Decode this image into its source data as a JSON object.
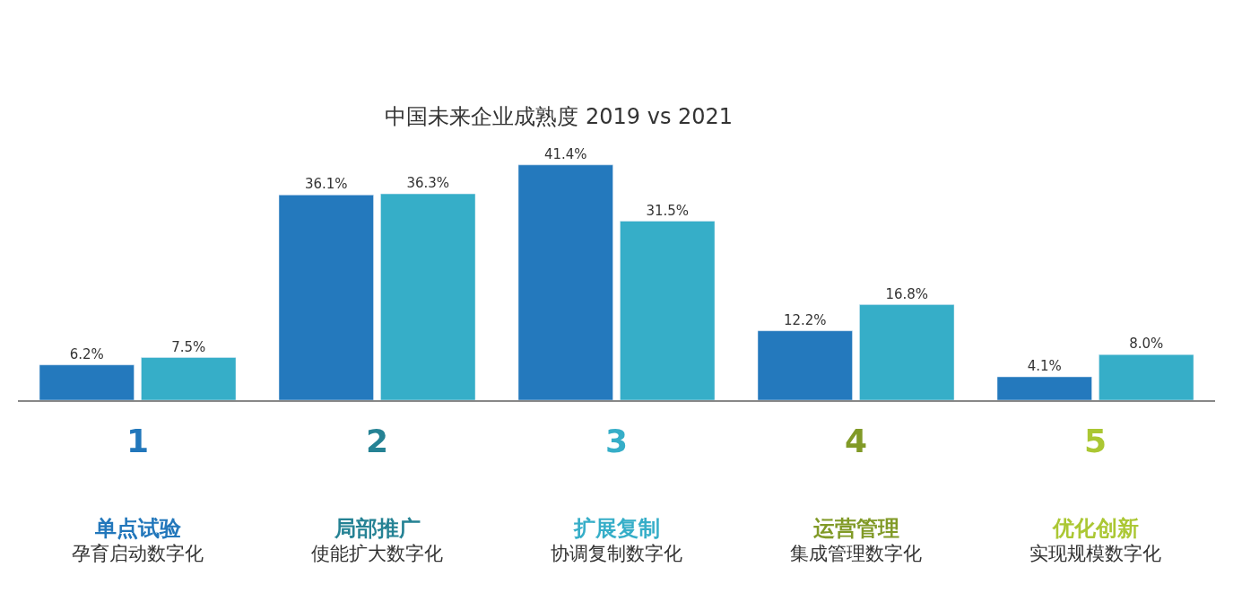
{
  "chart_data": {
    "type": "bar",
    "title": "中国未来企业成熟度 2019 vs 2021",
    "categories": [
      "单点试验",
      "局部推广",
      "扩展复制",
      "运营管理",
      "优化创新"
    ],
    "series": [
      {
        "color": "#2479bd",
        "values": [
          6.2,
          36.1,
          41.4,
          12.2,
          4.1
        ],
        "value_labels": [
          "6.2%",
          "36.1%",
          "41.4%",
          "12.2%",
          "4.1%"
        ]
      },
      {
        "color": "#36aec8",
        "values": [
          7.5,
          36.3,
          31.5,
          16.8,
          8.0
        ],
        "value_labels": [
          "7.5%",
          "36.3%",
          "31.5%",
          "16.8%",
          "8.0%"
        ]
      }
    ],
    "colors": [
      "#2277bb",
      "#258294",
      "#36aec8",
      "#819a27",
      "#abc733"
    ],
    "annotations": [
      "1",
      "2",
      "3",
      "4",
      "5",
      "孕育启动数字化",
      "使能扩大数字化",
      "协调复制数字化",
      "集成管理数字化",
      "实现规模数字化"
    ],
    "tick_labels": "x"
  }
}
